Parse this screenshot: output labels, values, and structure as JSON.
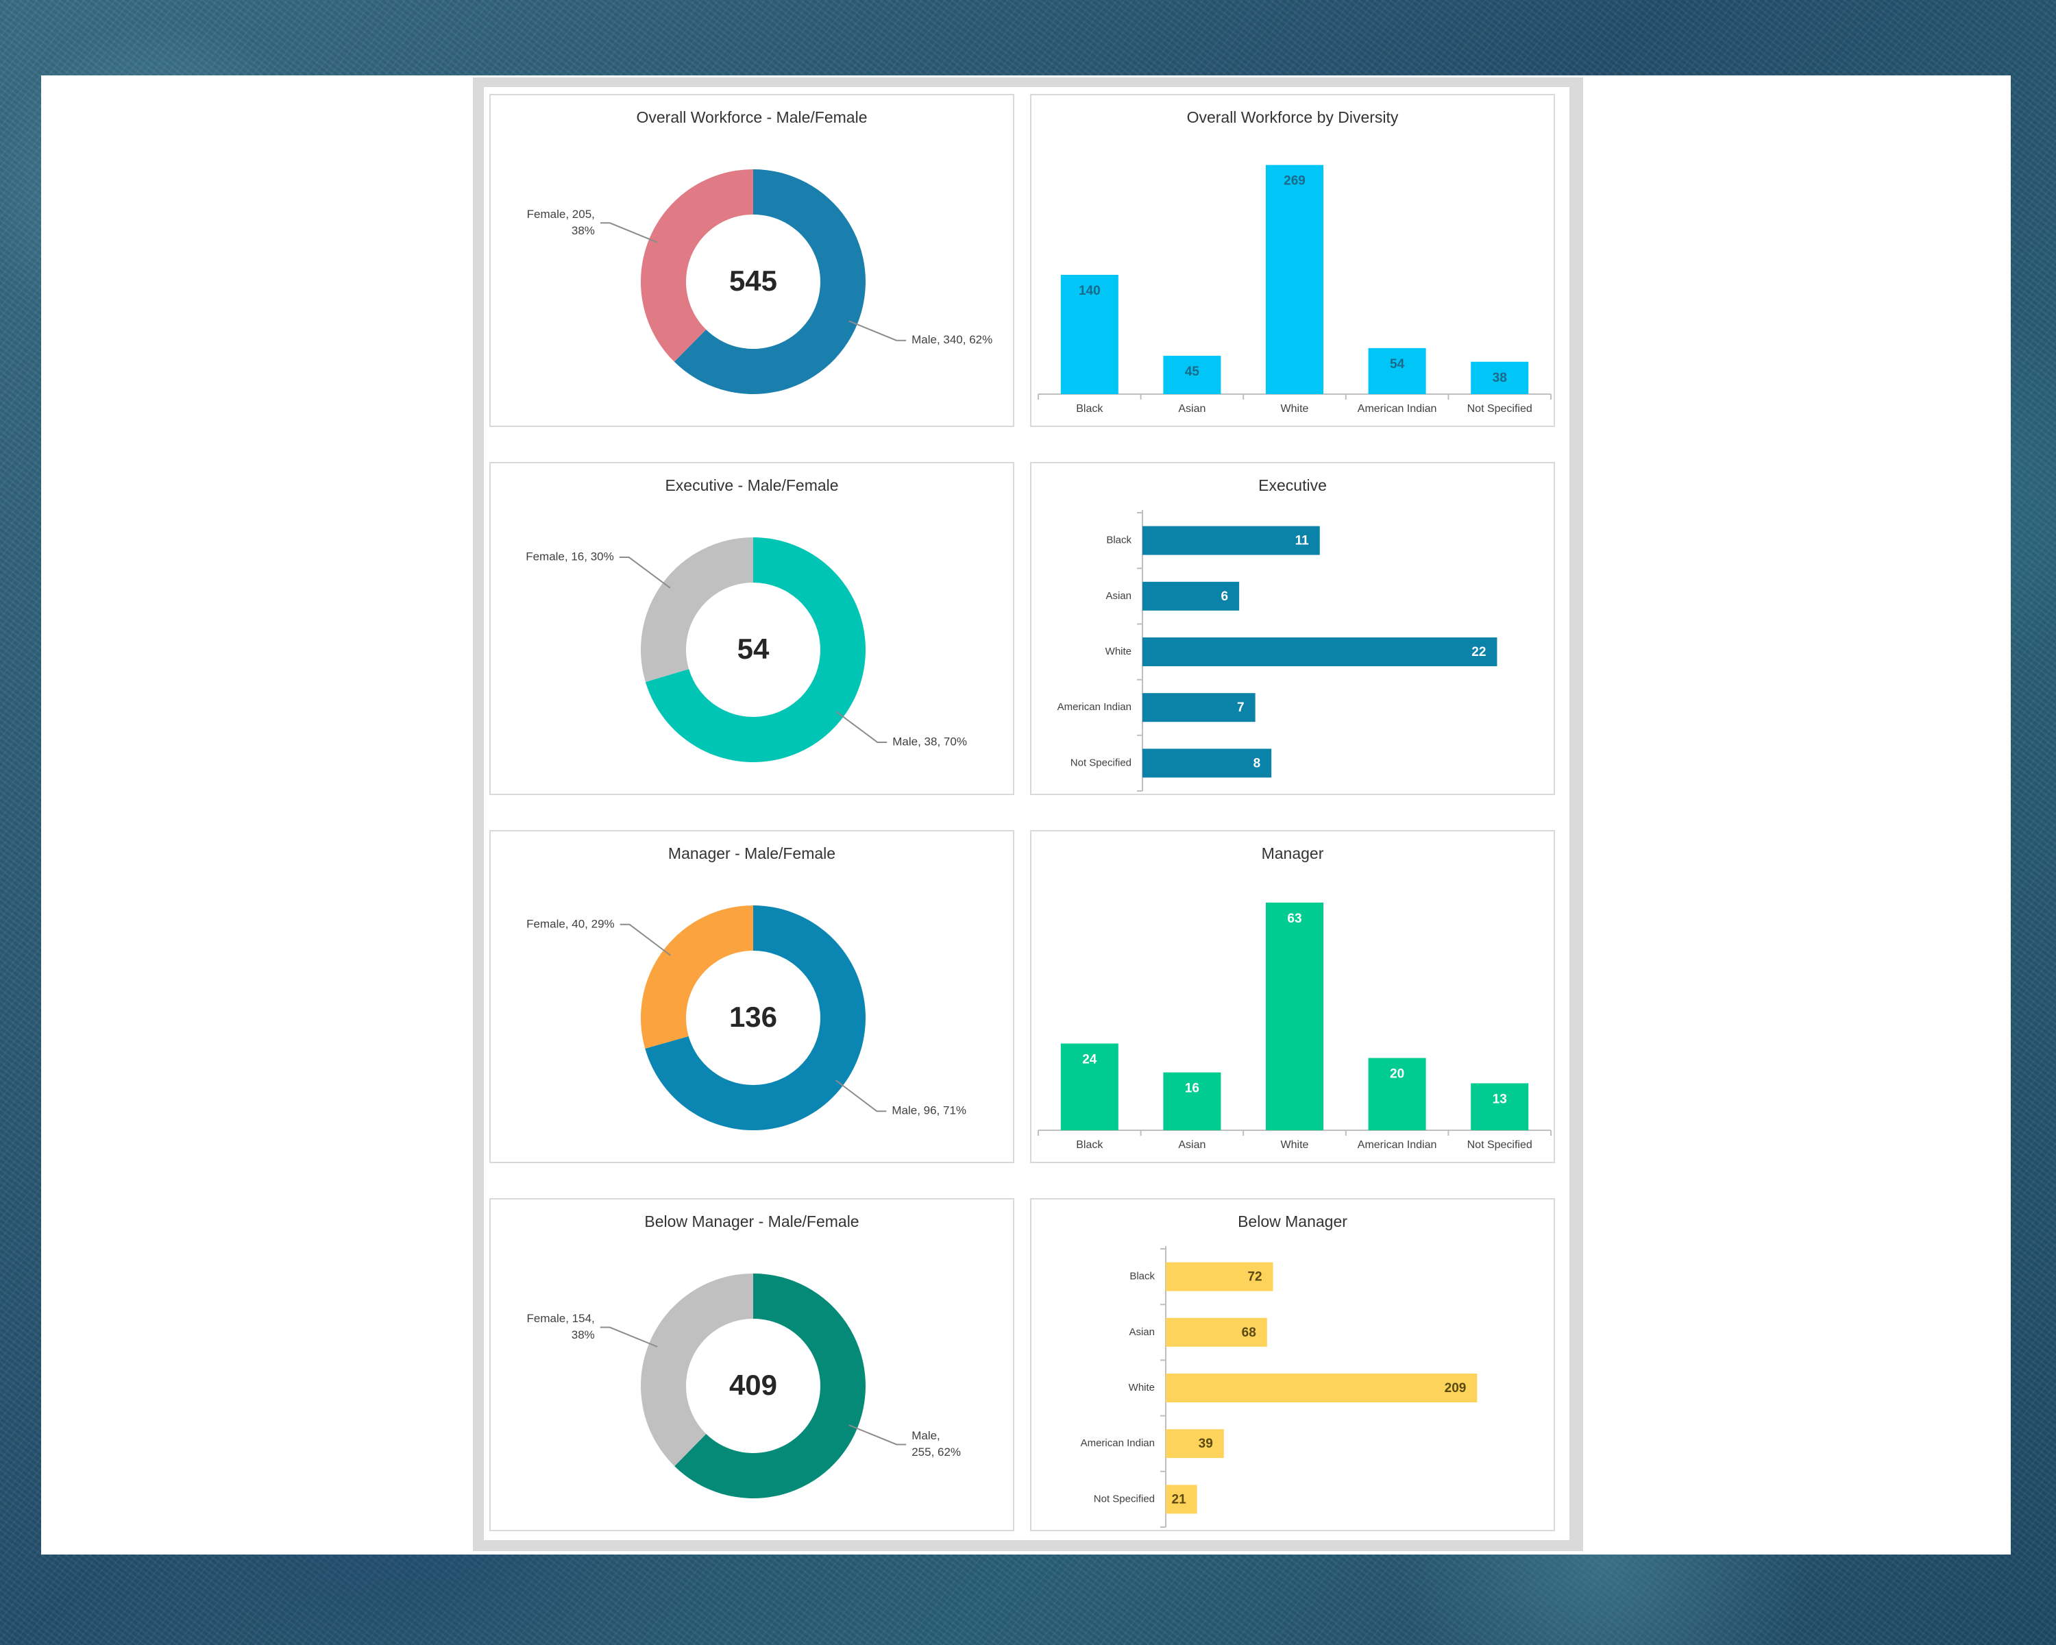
{
  "chart_data": [
    {
      "type": "pie",
      "title": "Overall Workforce - Male/Female",
      "center_value": "545",
      "slices": [
        {
          "name": "Male",
          "value": 340,
          "percent": 62,
          "color": "#1a7fad",
          "label_lines": [
            "Male, 340, 62%"
          ]
        },
        {
          "name": "Female",
          "value": 205,
          "percent": 38,
          "color": "#e07a85",
          "label_lines": [
            "Female, 205,",
            "38%"
          ]
        }
      ]
    },
    {
      "type": "bar",
      "orientation": "vertical",
      "title": "Overall Workforce by Diversity",
      "categories": [
        "Black",
        "Asian",
        "White",
        "American Indian",
        "Not Specified"
      ],
      "values": [
        140,
        45,
        269,
        54,
        38
      ],
      "color": "#00c5f7",
      "label_color": "#1b6a8a",
      "ylim": [
        0,
        280
      ]
    },
    {
      "type": "pie",
      "title": "Executive - Male/Female",
      "center_value": "54",
      "slices": [
        {
          "name": "Male",
          "value": 38,
          "percent": 70,
          "color": "#00c4b4",
          "label_lines": [
            "Male, 38, 70%"
          ]
        },
        {
          "name": "Female",
          "value": 16,
          "percent": 30,
          "color": "#c0c0c0",
          "label_lines": [
            "Female, 16, 30%"
          ]
        }
      ]
    },
    {
      "type": "bar",
      "orientation": "horizontal",
      "title": "Executive",
      "categories": [
        "Black",
        "Asian",
        "White",
        "American Indian",
        "Not Specified"
      ],
      "values": [
        11,
        6,
        22,
        7,
        8
      ],
      "color": "#0b82a8",
      "label_color": "#ffffff",
      "xlim": [
        0,
        25
      ]
    },
    {
      "type": "pie",
      "title": "Manager - Male/Female",
      "center_value": "136",
      "slices": [
        {
          "name": "Male",
          "value": 96,
          "percent": 71,
          "color": "#0b86b2",
          "label_lines": [
            "Male, 96, 71%"
          ]
        },
        {
          "name": "Female",
          "value": 40,
          "percent": 29,
          "color": "#fba33e",
          "label_lines": [
            "Female, 40, 29%"
          ]
        }
      ]
    },
    {
      "type": "bar",
      "orientation": "vertical",
      "title": "Manager",
      "categories": [
        "Black",
        "Asian",
        "White",
        "American Indian",
        "Not Specified"
      ],
      "values": [
        24,
        16,
        63,
        20,
        13
      ],
      "color": "#00cc92",
      "label_color": "#ffffff",
      "ylim": [
        0,
        66
      ]
    },
    {
      "type": "pie",
      "title": "Below Manager - Male/Female",
      "center_value": "409",
      "slices": [
        {
          "name": "Male",
          "value": 255,
          "percent": 62,
          "color": "#058a78",
          "label_lines": [
            "Male,",
            "255, 62%"
          ]
        },
        {
          "name": "Female",
          "value": 154,
          "percent": 38,
          "color": "#c0c0c0",
          "label_lines": [
            "Female, 154,",
            "38%"
          ]
        }
      ]
    },
    {
      "type": "bar",
      "orientation": "horizontal",
      "title": "Below Manager",
      "categories": [
        "Black",
        "Asian",
        "White",
        "American Indian",
        "Not Specified"
      ],
      "values": [
        72,
        68,
        209,
        39,
        21
      ],
      "color": "#fdd35c",
      "label_color": "#5a4a10",
      "xlim": [
        0,
        230
      ]
    }
  ]
}
